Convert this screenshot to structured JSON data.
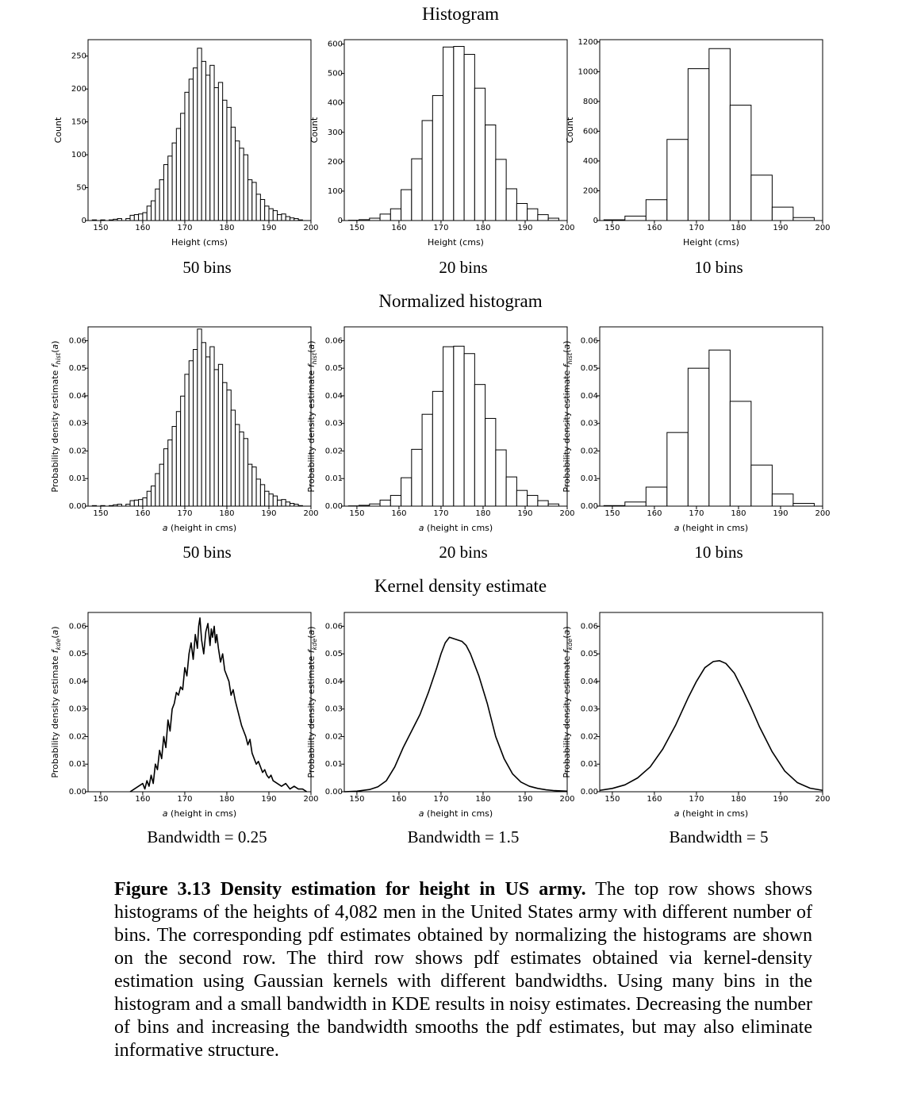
{
  "section_titles": {
    "row1": "Histogram",
    "row2": "Normalized histogram",
    "row3": "Kernel density estimate"
  },
  "subcaptions": {
    "r1c1": "50 bins",
    "r1c2": "20 bins",
    "r1c3": "10 bins",
    "r2c1": "50 bins",
    "r2c2": "20 bins",
    "r2c3": "10 bins",
    "r3c1": "Bandwidth = 0.25",
    "r3c2": "Bandwidth = 1.5",
    "r3c3": "Bandwidth = 5"
  },
  "caption": {
    "bold": "Figure 3.13 Density estimation for height in US army.",
    "text": "The top row shows shows histograms of the heights of 4,082 men in the United States army with different number of bins. The corresponding pdf estimates obtained by normalizing the histograms are shown on the second row. The third row shows pdf estimates obtained via kernel-density estimation using Gaussian kernels with different bandwidths. Using many bins in the histogram and a small bandwidth in KDE results in noisy estimates. Decreasing the number of bins and increasing the bandwidth smooths the pdf estimates, but may also eliminate informative structure."
  },
  "chart_data": [
    {
      "id": "r1c1",
      "type": "bar",
      "xlabel": "Height (cms)",
      "ylabel": "Count",
      "xlim": [
        147,
        200
      ],
      "ylim": [
        0,
        275
      ],
      "xticks": [
        150,
        160,
        170,
        180,
        190,
        200
      ],
      "yticks": [
        0,
        50,
        100,
        150,
        200,
        250
      ],
      "bin_start": 148,
      "bin_width": 1.0,
      "values": [
        1,
        0,
        1,
        0,
        1,
        2,
        3,
        0,
        3,
        8,
        9,
        10,
        12,
        22,
        30,
        48,
        62,
        85,
        98,
        118,
        140,
        163,
        195,
        215,
        232,
        262,
        242,
        221,
        236,
        202,
        210,
        183,
        172,
        142,
        121,
        110,
        100,
        62,
        58,
        40,
        32,
        22,
        18,
        15,
        9,
        10,
        6,
        4,
        3,
        1
      ]
    },
    {
      "id": "r1c2",
      "type": "bar",
      "xlabel": "Height (cms)",
      "ylabel": "Count",
      "xlim": [
        147,
        200
      ],
      "ylim": [
        0,
        615
      ],
      "xticks": [
        150,
        160,
        170,
        180,
        190,
        200
      ],
      "yticks": [
        0,
        100,
        200,
        300,
        400,
        500,
        600
      ],
      "bin_start": 148,
      "bin_width": 2.5,
      "values": [
        1,
        3,
        8,
        22,
        40,
        105,
        210,
        340,
        425,
        590,
        592,
        565,
        450,
        325,
        208,
        108,
        58,
        40,
        20,
        8
      ]
    },
    {
      "id": "r1c3",
      "type": "bar",
      "xlabel": "Height (cms)",
      "ylabel": "Count",
      "xlim": [
        147,
        200
      ],
      "ylim": [
        0,
        1215
      ],
      "xticks": [
        150,
        160,
        170,
        180,
        190,
        200
      ],
      "yticks": [
        0,
        200,
        400,
        600,
        800,
        1000,
        1200
      ],
      "bin_start": 148,
      "bin_width": 5,
      "values": [
        5,
        30,
        140,
        545,
        1020,
        1155,
        775,
        305,
        90,
        20
      ]
    },
    {
      "id": "r2c1",
      "type": "bar",
      "xlabel": "a (height in cms)",
      "ylabel": "Probability density estimate f_hist(a)",
      "xlim": [
        147,
        200
      ],
      "ylim": [
        0,
        0.065
      ],
      "xticks": [
        150,
        160,
        170,
        180,
        190,
        200
      ],
      "yticks": [
        0,
        0.01,
        0.02,
        0.03,
        0.04,
        0.05,
        0.06
      ],
      "bin_start": 148,
      "bin_width": 1.0,
      "values": [
        0.0002,
        0,
        0.0002,
        0,
        0.0002,
        0.0005,
        0.0007,
        0,
        0.0007,
        0.002,
        0.0022,
        0.0024,
        0.003,
        0.0054,
        0.0073,
        0.0118,
        0.0152,
        0.0208,
        0.024,
        0.0289,
        0.0343,
        0.0399,
        0.0478,
        0.0527,
        0.0568,
        0.0642,
        0.0593,
        0.0541,
        0.0578,
        0.0495,
        0.0514,
        0.0448,
        0.0421,
        0.0348,
        0.0296,
        0.0269,
        0.0245,
        0.0152,
        0.0142,
        0.0098,
        0.0078,
        0.0054,
        0.0044,
        0.0037,
        0.0022,
        0.0024,
        0.0015,
        0.001,
        0.0007,
        0.0002
      ]
    },
    {
      "id": "r2c2",
      "type": "bar",
      "xlabel": "a (height in cms)",
      "ylabel": "Probability density estimate f_hist(a)",
      "xlim": [
        147,
        200
      ],
      "ylim": [
        0,
        0.065
      ],
      "xticks": [
        150,
        160,
        170,
        180,
        190,
        200
      ],
      "yticks": [
        0,
        0.01,
        0.02,
        0.03,
        0.04,
        0.05,
        0.06
      ],
      "bin_start": 148,
      "bin_width": 2.5,
      "values": [
        0.0001,
        0.0003,
        0.0008,
        0.0022,
        0.0039,
        0.0103,
        0.0206,
        0.0333,
        0.0416,
        0.0578,
        0.058,
        0.0553,
        0.0441,
        0.0318,
        0.0204,
        0.0106,
        0.0057,
        0.0039,
        0.002,
        0.0008
      ]
    },
    {
      "id": "r2c3",
      "type": "bar",
      "xlabel": "a (height in cms)",
      "ylabel": "Probability density estimate f_hist(a)",
      "xlim": [
        147,
        200
      ],
      "ylim": [
        0,
        0.065
      ],
      "xticks": [
        150,
        160,
        170,
        180,
        190,
        200
      ],
      "yticks": [
        0,
        0.01,
        0.02,
        0.03,
        0.04,
        0.05,
        0.06
      ],
      "bin_start": 148,
      "bin_width": 5,
      "values": [
        0.0002,
        0.0015,
        0.0069,
        0.0267,
        0.05,
        0.0566,
        0.038,
        0.0149,
        0.0044,
        0.001
      ]
    },
    {
      "id": "r3c1",
      "type": "line",
      "xlabel": "a (height in cms)",
      "ylabel": "Probability density estimate f_kde(a)",
      "xlim": [
        147,
        200
      ],
      "ylim": [
        0,
        0.065
      ],
      "xticks": [
        150,
        160,
        170,
        180,
        190,
        200
      ],
      "yticks": [
        0,
        0.01,
        0.02,
        0.03,
        0.04,
        0.05,
        0.06
      ],
      "x": [
        157,
        158,
        159,
        160,
        160.5,
        161,
        161.5,
        162,
        162.5,
        163,
        163.5,
        164,
        164.5,
        165,
        165.5,
        166,
        166.5,
        167,
        167.5,
        168,
        168.5,
        169,
        169.5,
        170,
        170.5,
        171,
        171.5,
        172,
        172.5,
        173,
        173.3,
        173.6,
        174,
        174.5,
        175,
        175.5,
        176,
        176.3,
        176.6,
        177,
        177.3,
        177.6,
        178,
        178.5,
        179,
        179.5,
        180,
        180.5,
        181,
        181.5,
        182,
        182.5,
        183,
        183.5,
        184,
        184.5,
        185,
        185.5,
        186,
        186.5,
        187,
        187.5,
        188,
        188.5,
        189,
        189.5,
        190,
        190.5,
        191,
        192,
        193,
        194,
        195,
        196,
        197,
        198,
        199
      ],
      "y": [
        0,
        0.001,
        0.002,
        0.003,
        0.001,
        0.004,
        0.002,
        0.006,
        0.003,
        0.01,
        0.008,
        0.015,
        0.012,
        0.02,
        0.016,
        0.026,
        0.022,
        0.03,
        0.032,
        0.036,
        0.035,
        0.038,
        0.037,
        0.045,
        0.042,
        0.05,
        0.054,
        0.048,
        0.057,
        0.052,
        0.06,
        0.063,
        0.055,
        0.05,
        0.058,
        0.061,
        0.053,
        0.059,
        0.056,
        0.06,
        0.054,
        0.057,
        0.052,
        0.047,
        0.05,
        0.044,
        0.042,
        0.04,
        0.035,
        0.037,
        0.033,
        0.03,
        0.027,
        0.024,
        0.022,
        0.02,
        0.017,
        0.019,
        0.014,
        0.012,
        0.01,
        0.011,
        0.009,
        0.007,
        0.008,
        0.006,
        0.005,
        0.006,
        0.004,
        0.003,
        0.002,
        0.003,
        0.001,
        0.002,
        0.001,
        0.001,
        0
      ]
    },
    {
      "id": "r3c2",
      "type": "line",
      "xlabel": "a (height in cms)",
      "ylabel": "Probability density estimate f_kde(a)",
      "xlim": [
        147,
        200
      ],
      "ylim": [
        0,
        0.065
      ],
      "xticks": [
        150,
        160,
        170,
        180,
        190,
        200
      ],
      "yticks": [
        0,
        0.01,
        0.02,
        0.03,
        0.04,
        0.05,
        0.06
      ],
      "x": [
        147,
        150,
        153,
        155,
        157,
        159,
        161,
        163,
        165,
        167,
        169,
        170,
        171,
        172,
        173,
        174,
        175,
        176,
        177,
        178,
        179,
        180,
        181,
        182,
        183,
        185,
        187,
        189,
        191,
        193,
        195,
        197,
        200
      ],
      "y": [
        0,
        0.0002,
        0.0008,
        0.0018,
        0.004,
        0.009,
        0.016,
        0.022,
        0.028,
        0.036,
        0.045,
        0.05,
        0.054,
        0.056,
        0.0555,
        0.055,
        0.0545,
        0.053,
        0.05,
        0.046,
        0.042,
        0.037,
        0.032,
        0.026,
        0.02,
        0.012,
        0.0065,
        0.0035,
        0.002,
        0.0012,
        0.0007,
        0.0004,
        0.0002
      ]
    },
    {
      "id": "r3c3",
      "type": "line",
      "xlabel": "a (height in cms)",
      "ylabel": "Probability density estimate f_kde(a)",
      "xlim": [
        147,
        200
      ],
      "ylim": [
        0,
        0.065
      ],
      "xticks": [
        150,
        160,
        170,
        180,
        190,
        200
      ],
      "yticks": [
        0,
        0.01,
        0.02,
        0.03,
        0.04,
        0.05,
        0.06
      ],
      "x": [
        147,
        150,
        153,
        156,
        159,
        162,
        165,
        168,
        170,
        172,
        174,
        175.5,
        177,
        179,
        181,
        183,
        185,
        188,
        191,
        194,
        197,
        200
      ],
      "y": [
        0.0005,
        0.0012,
        0.0025,
        0.005,
        0.009,
        0.0155,
        0.024,
        0.034,
        0.04,
        0.045,
        0.0472,
        0.0475,
        0.0465,
        0.043,
        0.037,
        0.0305,
        0.0235,
        0.0145,
        0.0075,
        0.0033,
        0.0013,
        0.0005
      ]
    }
  ]
}
